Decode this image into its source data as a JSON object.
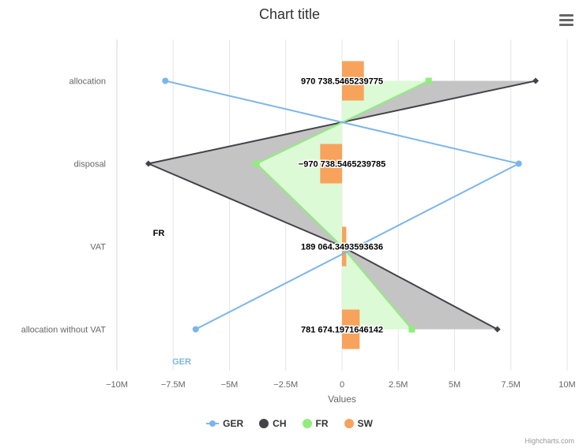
{
  "title": "Chart title",
  "credits": "Highcharts.com",
  "chart_data": {
    "type": "line",
    "inverted": true,
    "title": "Chart title",
    "xlabel": "",
    "ylabel": "Values",
    "categories": [
      "allocation",
      "disposal",
      "VAT",
      "allocation without VAT"
    ],
    "yticks": [
      -10000000,
      -7500000,
      -5000000,
      -2500000,
      0,
      2500000,
      5000000,
      7500000,
      10000000
    ],
    "ytick_labels": [
      "−10M",
      "−7.5M",
      "−5M",
      "−2.5M",
      "0",
      "2.5M",
      "5M",
      "7.5M",
      "10M"
    ],
    "ylim": [
      -10000000,
      10000000
    ],
    "grid": true,
    "legend_position": "bottom",
    "series": [
      {
        "name": "GER",
        "type": "line",
        "color": "#7cb5ec",
        "marker": "circle",
        "values": [
          -7850000,
          7850000,
          null,
          -6500000
        ]
      },
      {
        "name": "CH",
        "type": "area",
        "color": "#434348",
        "marker": "diamond",
        "values": [
          8600000,
          -8600000,
          0,
          6900000
        ]
      },
      {
        "name": "FR",
        "type": "area",
        "color": "#90ed7d",
        "marker": "square",
        "values": [
          3850000,
          -3800000,
          0,
          3100000
        ]
      },
      {
        "name": "SW",
        "type": "column",
        "color": "#f7a35c",
        "values": [
          970738.5465239775,
          -970738.5465239785,
          189064.3493593636,
          781674.1971646142
        ]
      }
    ],
    "data_labels": [
      {
        "text": "970 738.5465239775",
        "category": 0
      },
      {
        "text": "−970 738.5465239785",
        "category": 1
      },
      {
        "text": "189 064.3493593636",
        "category": 2
      },
      {
        "text": "781 674.1971646142",
        "category": 3
      }
    ],
    "annotations": [
      {
        "text": "FR",
        "color": "#000000"
      },
      {
        "text": "GER",
        "color": "#7cb5ec"
      }
    ]
  }
}
